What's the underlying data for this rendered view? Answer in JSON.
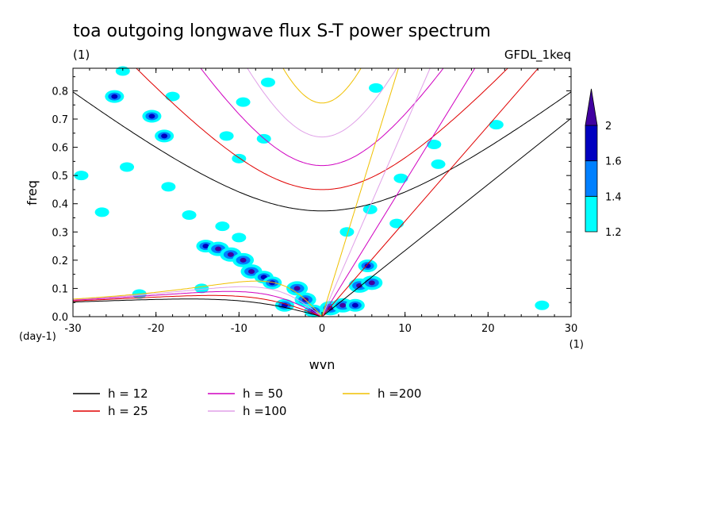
{
  "chart_data": {
    "type": "heatmap",
    "title": "toa outgoing longwave flux S-T power spectrum",
    "subtitle_left": "(1)",
    "subtitle_right": "GFDL_1keq",
    "xlabel": "wvn",
    "ylabel": "freq",
    "x_unit": "(1)",
    "y_unit": "(day-1)",
    "xlim": [
      -30,
      30
    ],
    "ylim": [
      0,
      0.88
    ],
    "x_ticks": [
      -30,
      -20,
      -10,
      0,
      10,
      20,
      30
    ],
    "x_tick_labels": [
      "-30",
      "-20",
      "-10",
      "0",
      "10",
      "20",
      "30"
    ],
    "y_ticks": [
      0,
      0.1,
      0.2,
      0.3,
      0.4,
      0.5,
      0.6,
      0.7,
      0.8
    ],
    "y_tick_labels": [
      "0.0",
      "0.1",
      "0.2",
      "0.3",
      "0.4",
      "0.5",
      "0.6",
      "0.7",
      "0.8"
    ],
    "colorbar": {
      "levels": [
        1.2,
        1.4,
        1.6,
        2
      ],
      "level_labels": [
        "1.2",
        "1.4",
        "1.6",
        "2"
      ],
      "colors": [
        "#00ffff",
        "#0080ff",
        "#0000c0",
        "#4000a0"
      ]
    },
    "dispersion_curves": [
      {
        "label": "h = 12",
        "h": 12,
        "color": "#000000"
      },
      {
        "label": "h = 25",
        "h": 25,
        "color": "#e00000"
      },
      {
        "label": "h = 50",
        "h": 50,
        "color": "#d000c0"
      },
      {
        "label": "h =100",
        "h": 100,
        "color": "#e0a0e8"
      },
      {
        "label": "h =200",
        "h": 200,
        "color": "#f0c000"
      }
    ],
    "power_blobs": [
      {
        "x": -25.0,
        "y": 0.78,
        "level": 1.6
      },
      {
        "x": -24.0,
        "y": 0.87,
        "level": 1.2
      },
      {
        "x": -22.0,
        "y": 0.08,
        "level": 1.2
      },
      {
        "x": -20.5,
        "y": 0.71,
        "level": 1.6
      },
      {
        "x": -19.0,
        "y": 0.64,
        "level": 1.6
      },
      {
        "x": -18.5,
        "y": 0.46,
        "level": 1.2
      },
      {
        "x": -18.0,
        "y": 0.78,
        "level": 1.2
      },
      {
        "x": -14.5,
        "y": 0.1,
        "level": 1.2
      },
      {
        "x": -14.0,
        "y": 0.25,
        "level": 1.6
      },
      {
        "x": -12.5,
        "y": 0.24,
        "level": 2
      },
      {
        "x": -11.0,
        "y": 0.22,
        "level": 2
      },
      {
        "x": -9.5,
        "y": 0.2,
        "level": 2
      },
      {
        "x": -8.5,
        "y": 0.16,
        "level": 2
      },
      {
        "x": -7.0,
        "y": 0.14,
        "level": 1.6
      },
      {
        "x": -6.0,
        "y": 0.12,
        "level": 1.6
      },
      {
        "x": -10.0,
        "y": 0.28,
        "level": 1.2
      },
      {
        "x": -12.0,
        "y": 0.32,
        "level": 1.2
      },
      {
        "x": -16.0,
        "y": 0.36,
        "level": 1.2
      },
      {
        "x": -6.5,
        "y": 0.83,
        "level": 1.2
      },
      {
        "x": -7.0,
        "y": 0.63,
        "level": 1.2
      },
      {
        "x": -4.5,
        "y": 0.04,
        "level": 1.6
      },
      {
        "x": -3.0,
        "y": 0.1,
        "level": 2
      },
      {
        "x": -2.0,
        "y": 0.06,
        "level": 2
      },
      {
        "x": -1.0,
        "y": 0.02,
        "level": 1.6
      },
      {
        "x": 1.0,
        "y": 0.03,
        "level": 2
      },
      {
        "x": 2.5,
        "y": 0.04,
        "level": 2
      },
      {
        "x": 4.0,
        "y": 0.04,
        "level": 1.6
      },
      {
        "x": 4.5,
        "y": 0.11,
        "level": 2
      },
      {
        "x": 5.5,
        "y": 0.18,
        "level": 1.6
      },
      {
        "x": 6.0,
        "y": 0.12,
        "level": 2
      },
      {
        "x": 5.8,
        "y": 0.38,
        "level": 1.2
      },
      {
        "x": 3.0,
        "y": 0.3,
        "level": 1.2
      },
      {
        "x": 6.5,
        "y": 0.81,
        "level": 1.2
      },
      {
        "x": 9.5,
        "y": 0.49,
        "level": 1.2
      },
      {
        "x": 9.0,
        "y": 0.33,
        "level": 1.2
      },
      {
        "x": 13.5,
        "y": 0.61,
        "level": 1.2
      },
      {
        "x": 14.0,
        "y": 0.54,
        "level": 1.2
      },
      {
        "x": 21.0,
        "y": 0.68,
        "level": 1.2
      },
      {
        "x": 26.5,
        "y": 0.04,
        "level": 1.2
      },
      {
        "x": -26.5,
        "y": 0.37,
        "level": 1.2
      },
      {
        "x": -29.0,
        "y": 0.5,
        "level": 1.2
      },
      {
        "x": -23.5,
        "y": 0.53,
        "level": 1.2
      },
      {
        "x": -11.5,
        "y": 0.64,
        "level": 1.2
      },
      {
        "x": -9.5,
        "y": 0.76,
        "level": 1.2
      },
      {
        "x": -10.0,
        "y": 0.56,
        "level": 1.2
      }
    ]
  }
}
